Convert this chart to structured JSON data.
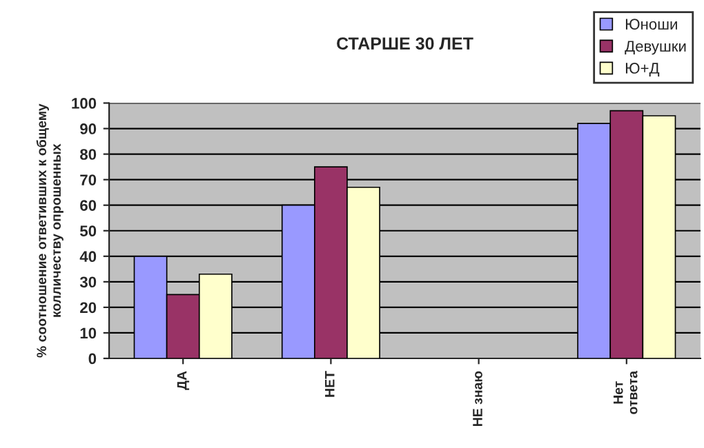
{
  "chart_data": {
    "type": "bar",
    "title": "СТАРШЕ 30 ЛЕТ",
    "ylabel": "% соотношение ответивших к общему\nколличеству опрошенных",
    "categories": [
      "ДА",
      "НЕТ",
      "НЕ знаю",
      "Нет\nответа"
    ],
    "series": [
      {
        "name": "Юноши",
        "color": "#9999ff",
        "values": [
          40,
          60,
          null,
          92
        ]
      },
      {
        "name": "Девушки",
        "color": "#993366",
        "values": [
          25,
          75,
          null,
          97
        ]
      },
      {
        "name": "Ю+Д",
        "color": "#ffffcc",
        "values": [
          33,
          67,
          null,
          95
        ]
      }
    ],
    "ylim": [
      0,
      100
    ],
    "yticks": [
      0,
      10,
      20,
      30,
      40,
      50,
      60,
      70,
      80,
      90,
      100
    ],
    "grid": "y",
    "legend": "top right"
  }
}
